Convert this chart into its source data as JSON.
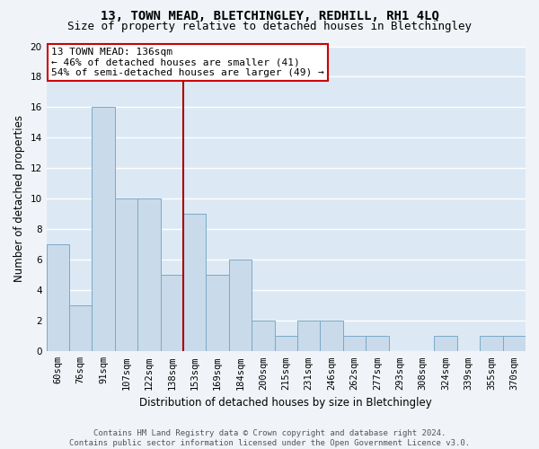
{
  "title1": "13, TOWN MEAD, BLETCHINGLEY, REDHILL, RH1 4LQ",
  "title2": "Size of property relative to detached houses in Bletchingley",
  "xlabel": "Distribution of detached houses by size in Bletchingley",
  "ylabel": "Number of detached properties",
  "bar_color": "#c9daea",
  "bar_edge_color": "#7aaac8",
  "background_color": "#dce9f5",
  "grid_color": "#ffffff",
  "categories": [
    "60sqm",
    "76sqm",
    "91sqm",
    "107sqm",
    "122sqm",
    "138sqm",
    "153sqm",
    "169sqm",
    "184sqm",
    "200sqm",
    "215sqm",
    "231sqm",
    "246sqm",
    "262sqm",
    "277sqm",
    "293sqm",
    "308sqm",
    "324sqm",
    "339sqm",
    "355sqm",
    "370sqm"
  ],
  "values": [
    7,
    3,
    16,
    10,
    10,
    5,
    9,
    5,
    6,
    2,
    1,
    2,
    2,
    1,
    1,
    0,
    0,
    1,
    0,
    1,
    1
  ],
  "vline_x_index": 5,
  "vline_color": "#aa0000",
  "annotation_line1": "13 TOWN MEAD: 136sqm",
  "annotation_line2": "← 46% of detached houses are smaller (41)",
  "annotation_line3": "54% of semi-detached houses are larger (49) →",
  "annotation_box_color": "#ffffff",
  "annotation_box_edge": "#cc0000",
  "ylim": [
    0,
    20
  ],
  "yticks": [
    0,
    2,
    4,
    6,
    8,
    10,
    12,
    14,
    16,
    18,
    20
  ],
  "footer_line1": "Contains HM Land Registry data © Crown copyright and database right 2024.",
  "footer_line2": "Contains public sector information licensed under the Open Government Licence v3.0.",
  "title_fontsize": 10,
  "subtitle_fontsize": 9,
  "tick_fontsize": 7.5,
  "ylabel_fontsize": 8.5,
  "xlabel_fontsize": 8.5,
  "annotation_fontsize": 8,
  "footer_fontsize": 6.5
}
